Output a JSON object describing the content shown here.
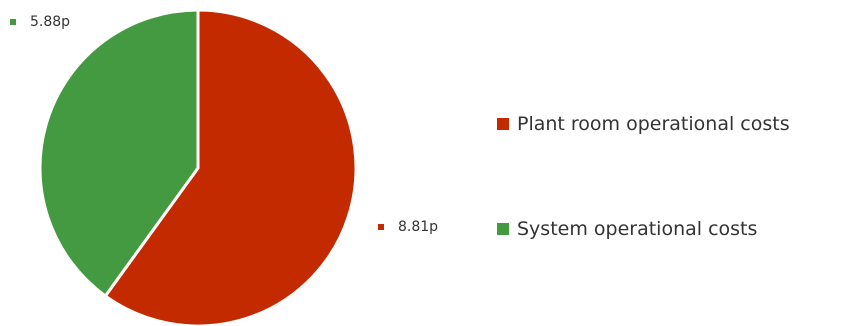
{
  "chart_data": {
    "type": "pie",
    "title": "",
    "slices": [
      {
        "label": "Plant room operational costs",
        "value": 8.81,
        "display": "8.81p",
        "color": "#c42a00"
      },
      {
        "label": "System operational costs",
        "value": 5.88,
        "display": "5.88p",
        "color": "#439a40"
      }
    ],
    "legend_position": "right"
  }
}
